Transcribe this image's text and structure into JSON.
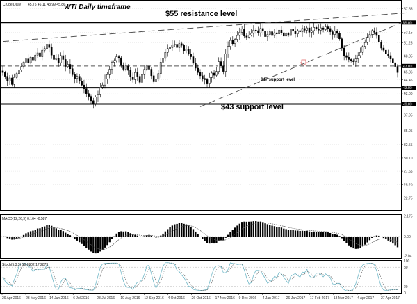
{
  "chart_data": {
    "type": "candlestick",
    "symbol": "Crude,Daily",
    "ohlc_header": "45.75 46.11 43.99 45.86",
    "title": "WTI Daily timeframe",
    "colors": {
      "candle_up": "#ffffff",
      "candle_down": "#000000",
      "wick": "#000000",
      "background": "#ffffff",
      "grid": "#cccccc",
      "stoch_main": "#6fb7c7",
      "stoch_signal": "#555555",
      "arrow": "#e06060"
    },
    "ylim": [
      20.5,
      59.0
    ],
    "y_ticks": [
      22.75,
      25.2,
      27.65,
      30.1,
      32.55,
      35.05,
      37.95,
      40.0,
      42.0,
      43.0,
      44.45,
      45.86,
      47.0,
      48.85,
      51.25,
      53.15,
      55.0,
      57.55
    ],
    "last_price": 45.86,
    "x_labels": [
      "29 Apr 2016",
      "23 May 2016",
      "14 Jun 2016",
      "6 Jul 2016",
      "28 Jul 2016",
      "19 Aug 2016",
      "12 Sep 2016",
      "4 Oct 2016",
      "26 Oct 2016",
      "17 Nov 2016",
      "9 Dec 2016",
      "4 Jan 2017",
      "26 Jan 2017",
      "17 Feb 2017",
      "13 Mar 2017",
      "4 Apr 2017",
      "27 Apr 2017"
    ],
    "key_levels": [
      {
        "price": 55.0,
        "label": "55.00",
        "style": "solid-bold"
      },
      {
        "price": 47.0,
        "label": "47.00",
        "style": "dashed"
      },
      {
        "price": 43.0,
        "label": "43.00",
        "style": "solid-bold"
      },
      {
        "price": 40.0,
        "label": "40.00",
        "style": "solid-bold"
      }
    ],
    "annotations": [
      {
        "text": "$55 resistance level",
        "kind": "big"
      },
      {
        "text": "$47 support level",
        "kind": "small"
      },
      {
        "text": "$43 support level",
        "kind": "big"
      }
    ],
    "trendlines": [
      {
        "from": [
          0,
          51.5
        ],
        "to": [
          175,
          56.8
        ]
      },
      {
        "from": [
          85,
          39.5
        ],
        "to": [
          172,
          55.0
        ]
      }
    ],
    "candles_close": [
      45.8,
      45.1,
      44.2,
      44.8,
      43.6,
      44.9,
      45.6,
      46.3,
      46.9,
      47.7,
      48.3,
      47.6,
      48.6,
      48.1,
      49.0,
      49.4,
      48.7,
      49.9,
      50.2,
      51.0,
      50.4,
      49.0,
      48.2,
      48.4,
      47.6,
      48.9,
      48.2,
      46.9,
      47.3,
      46.5,
      45.4,
      44.7,
      45.1,
      44.2,
      43.5,
      42.8,
      41.9,
      41.4,
      40.6,
      40.1,
      41.3,
      41.8,
      43.1,
      43.5,
      44.6,
      45.4,
      46.4,
      47.7,
      48.0,
      48.7,
      48.5,
      47.1,
      46.4,
      47.0,
      46.2,
      45.0,
      44.5,
      45.8,
      45.1,
      44.0,
      45.4,
      46.4,
      47.0,
      46.4,
      45.2,
      44.1,
      44.6,
      45.6,
      47.7,
      48.4,
      49.5,
      50.2,
      50.4,
      50.9,
      51.0,
      50.4,
      51.1,
      50.8,
      49.7,
      50.1,
      49.2,
      48.7,
      47.5,
      46.6,
      45.8,
      45.2,
      44.7,
      44.5,
      43.7,
      44.9,
      45.7,
      45.3,
      46.0,
      47.8,
      47.0,
      46.0,
      49.2,
      50.6,
      51.7,
      51.1,
      51.9,
      52.6,
      53.2,
      53.8,
      52.5,
      52.3,
      52.7,
      53.0,
      53.6,
      53.5,
      53.1,
      53.9,
      53.4,
      52.4,
      52.8,
      53.3,
      52.6,
      53.1,
      52.9,
      53.6,
      53.1,
      52.5,
      53.0,
      52.6,
      53.8,
      53.4,
      52.9,
      53.5,
      53.3,
      53.9,
      53.6,
      54.0,
      53.2,
      53.5,
      54.1,
      53.8,
      53.6,
      54.0,
      53.7,
      54.2,
      53.9,
      53.3,
      52.8,
      53.4,
      53.0,
      52.0,
      50.3,
      48.9,
      48.6,
      48.2,
      48.0,
      47.8,
      48.3,
      48.9,
      49.5,
      50.6,
      51.3,
      52.2,
      52.8,
      53.5,
      53.2,
      52.6,
      51.4,
      50.3,
      49.9,
      49.2,
      48.9,
      48.3,
      47.6,
      46.9,
      45.8
    ],
    "macd": {
      "label": "MACD(12,26,9) 0.164 -0.587",
      "ticks": [
        "2.175",
        "0.00",
        "-2.04"
      ],
      "ylim": [
        -2.3,
        2.3
      ]
    },
    "stochastic": {
      "label": "Stoch(5,3,3) 19.0902 17.2873",
      "ticks": [
        "100",
        "80",
        "20",
        "0"
      ],
      "ylim": [
        0,
        100
      ]
    }
  }
}
